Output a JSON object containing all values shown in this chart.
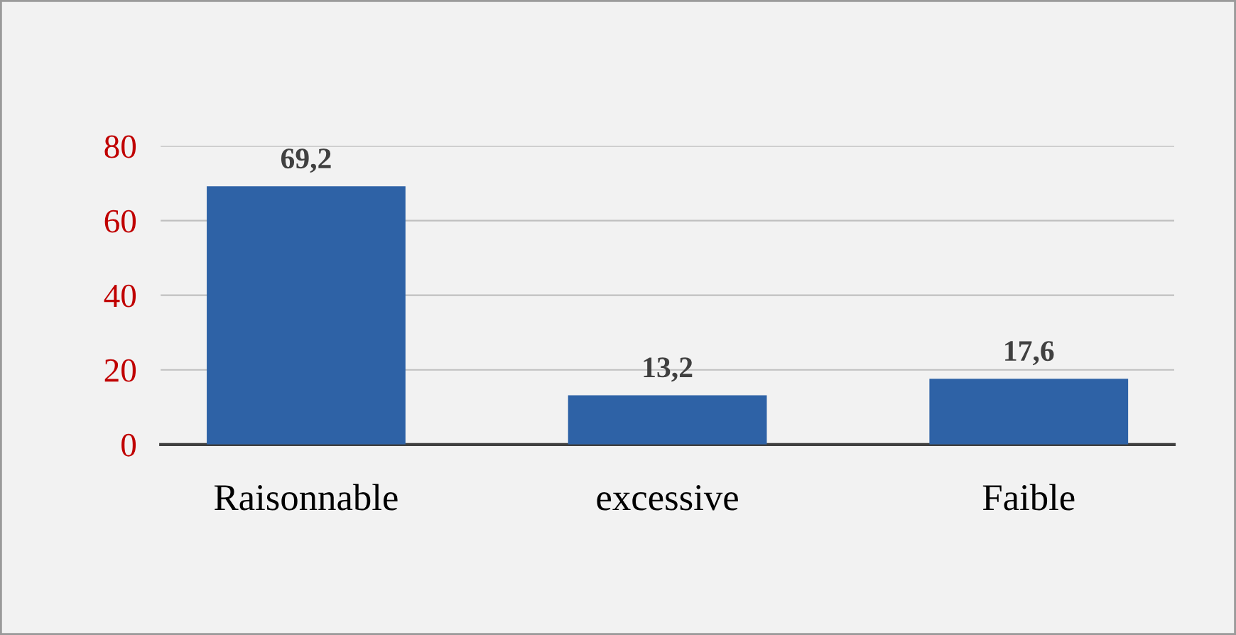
{
  "chart_data": {
    "type": "bar",
    "categories": [
      "Raisonnable",
      "excessive",
      "Faible"
    ],
    "values": [
      69.2,
      13.2,
      17.6
    ],
    "value_labels": [
      "69,2",
      "13,2",
      "17,6"
    ],
    "color": "#2e62a6",
    "ylim": [
      0,
      80
    ],
    "yticks": [
      0,
      20,
      40,
      60,
      80
    ],
    "grid": "y",
    "legend": false
  }
}
